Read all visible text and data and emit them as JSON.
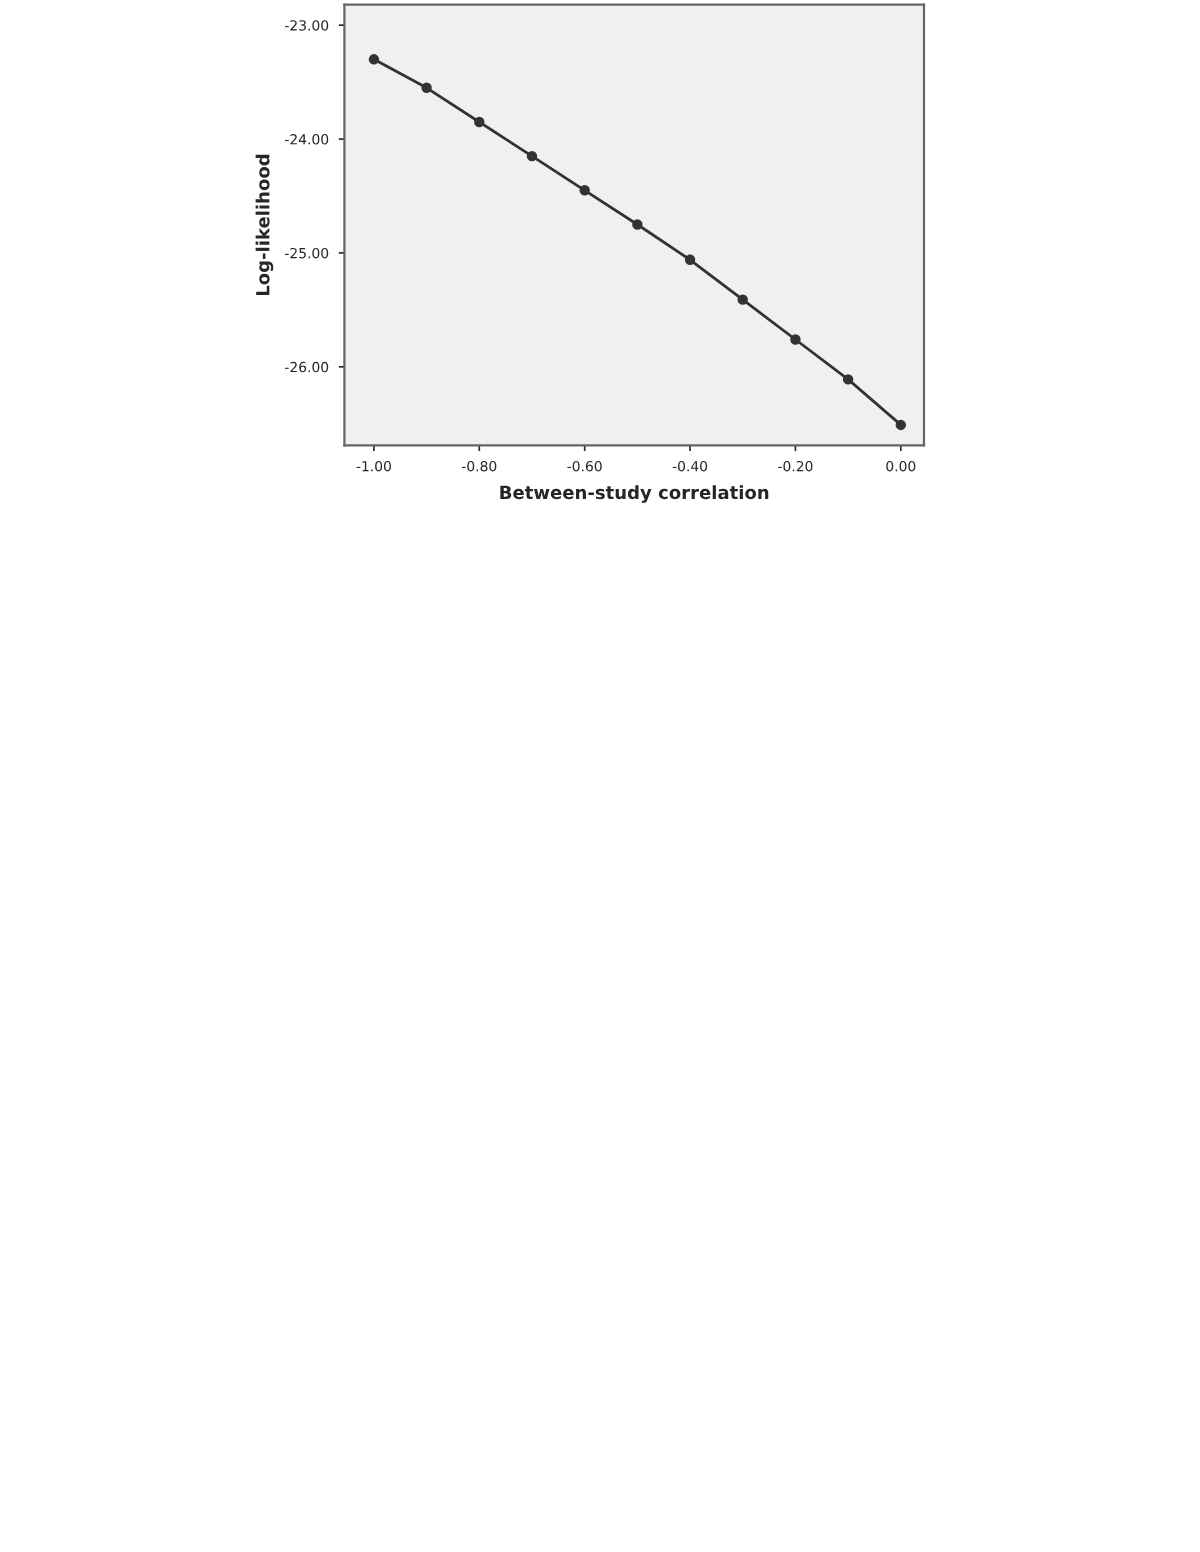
{
  "chart_data": {
    "type": "line",
    "xlabel": "Between-study correlation",
    "ylabel": "Log-likelihood",
    "x": [
      -1.0,
      -0.9,
      -0.8,
      -0.7,
      -0.6,
      -0.5,
      -0.4,
      -0.3,
      -0.2,
      -0.1,
      0.0
    ],
    "series": [
      {
        "color": "#333333",
        "values": [
          -23.3,
          -23.55,
          -23.85,
          -24.15,
          -24.45,
          -24.75,
          -25.06,
          -25.41,
          -25.76,
          -26.11,
          -26.51
        ]
      }
    ],
    "xlim": [
      -1.056,
      0.044
    ],
    "ylim": [
      -26.69,
      -22.82
    ],
    "xticks": [
      {
        "value": -1.0,
        "label": "-1.00"
      },
      {
        "value": -0.8,
        "label": "-0.80"
      },
      {
        "value": -0.6,
        "label": "-0.60"
      },
      {
        "value": -0.4,
        "label": "-0.40"
      },
      {
        "value": -0.2,
        "label": "-0.20"
      },
      {
        "value": 0.0,
        "label": "0.00"
      }
    ],
    "yticks": [
      {
        "value": -23.0,
        "label": "-23.00"
      },
      {
        "value": -24.0,
        "label": "-24.00"
      },
      {
        "value": -25.0,
        "label": "-25.00"
      },
      {
        "value": -26.0,
        "label": "-26.00"
      }
    ],
    "marker": "circle",
    "line_style": "solid",
    "grid": false,
    "legend": false
  }
}
